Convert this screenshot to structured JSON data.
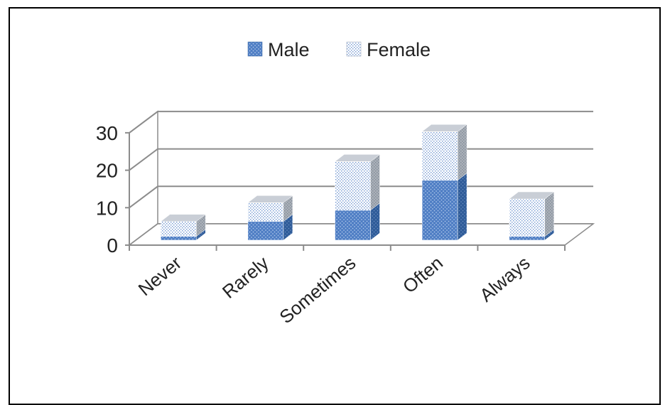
{
  "chart_data": {
    "type": "bar",
    "stacked": true,
    "three_d": true,
    "categories": [
      "Never",
      "Rarely",
      "Sometimes",
      "Often",
      "Always"
    ],
    "series": [
      {
        "name": "Male",
        "values": [
          1,
          5,
          8,
          16,
          1
        ],
        "color": "#4a7fc5",
        "pattern": "dots"
      },
      {
        "name": "Female",
        "values": [
          4,
          5,
          13,
          13,
          10
        ],
        "color": "#dce8f7",
        "pattern": "dots"
      }
    ],
    "yticks": [
      "0",
      "10",
      "20",
      "30"
    ],
    "ylim": [
      0,
      30
    ],
    "grid": true,
    "legend": "top"
  }
}
